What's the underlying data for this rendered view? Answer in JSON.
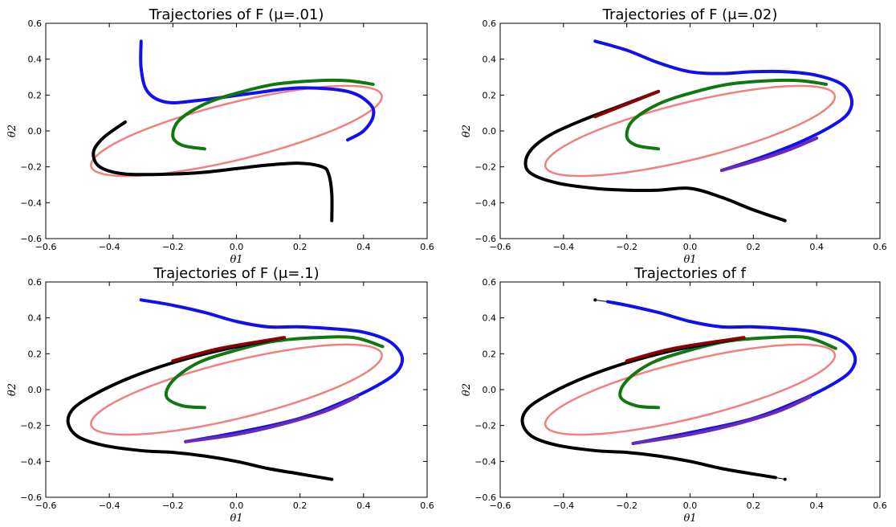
{
  "colors": {
    "limit_cycle": "#f08080",
    "blue": "#1010ee",
    "green": "#107810",
    "black": "#000000",
    "red": "#8b0000",
    "purple": "#6a2ab8"
  },
  "chart_data": [
    {
      "type": "line",
      "title": "Trajectories of F (μ=.01)",
      "xlabel": "θ1",
      "ylabel": "θ2",
      "xlim": [
        -0.6,
        0.6
      ],
      "ylim": [
        -0.6,
        0.6
      ],
      "xticks": [
        "−0.6",
        "−0.4",
        "−0.2",
        "0.0",
        "0.2",
        "0.4",
        "0.6"
      ],
      "yticks": [
        "0.6",
        "0.4",
        "0.2",
        "0.0",
        "−0.2",
        "−0.4",
        "−0.6"
      ],
      "grid": false,
      "ellipse": {
        "cx": 0.0,
        "cy": 0.0,
        "rx": 0.5,
        "ry": 0.15,
        "angle_deg": 25
      },
      "series": [
        {
          "color": "blue",
          "points": [
            [
              -0.3,
              0.5
            ],
            [
              -0.3,
              0.35
            ],
            [
              -0.28,
              0.22
            ],
            [
              -0.22,
              0.16
            ],
            [
              -0.12,
              0.17
            ],
            [
              0.05,
              0.21
            ],
            [
              0.2,
              0.24
            ],
            [
              0.35,
              0.22
            ],
            [
              0.42,
              0.15
            ],
            [
              0.43,
              0.08
            ],
            [
              0.4,
              0.0
            ],
            [
              0.35,
              -0.05
            ]
          ]
        },
        {
          "color": "green",
          "points": [
            [
              -0.1,
              -0.1
            ],
            [
              -0.17,
              -0.08
            ],
            [
              -0.2,
              -0.03
            ],
            [
              -0.18,
              0.06
            ],
            [
              -0.1,
              0.15
            ],
            [
              0.0,
              0.21
            ],
            [
              0.12,
              0.26
            ],
            [
              0.25,
              0.28
            ],
            [
              0.35,
              0.28
            ],
            [
              0.43,
              0.26
            ]
          ]
        },
        {
          "color": "black",
          "points": [
            [
              0.3,
              -0.5
            ],
            [
              0.3,
              -0.35
            ],
            [
              0.29,
              -0.24
            ],
            [
              0.27,
              -0.2
            ],
            [
              0.2,
              -0.18
            ],
            [
              0.1,
              -0.19
            ],
            [
              0.0,
              -0.21
            ],
            [
              -0.1,
              -0.23
            ],
            [
              -0.2,
              -0.24
            ],
            [
              -0.35,
              -0.24
            ],
            [
              -0.43,
              -0.2
            ],
            [
              -0.45,
              -0.12
            ],
            [
              -0.42,
              -0.04
            ],
            [
              -0.35,
              0.05
            ]
          ]
        }
      ]
    },
    {
      "type": "line",
      "title": "Trajectories of F (μ=.02)",
      "xlabel": "θ1",
      "ylabel": "θ2",
      "xlim": [
        -0.6,
        0.6
      ],
      "ylim": [
        -0.6,
        0.6
      ],
      "xticks": [
        "−0.6",
        "−0.4",
        "−0.2",
        "0.0",
        "0.2",
        "0.4",
        "0.6"
      ],
      "yticks": [
        "0.6",
        "0.4",
        "0.2",
        "0.0",
        "−0.2",
        "−0.4",
        "−0.6"
      ],
      "grid": false,
      "ellipse": {
        "cx": 0.0,
        "cy": 0.0,
        "rx": 0.5,
        "ry": 0.15,
        "angle_deg": 25
      },
      "series": [
        {
          "color": "blue",
          "points": [
            [
              -0.3,
              0.5
            ],
            [
              -0.2,
              0.45
            ],
            [
              -0.1,
              0.38
            ],
            [
              0.0,
              0.33
            ],
            [
              0.1,
              0.32
            ],
            [
              0.2,
              0.33
            ],
            [
              0.3,
              0.33
            ],
            [
              0.4,
              0.31
            ],
            [
              0.48,
              0.26
            ],
            [
              0.51,
              0.18
            ],
            [
              0.5,
              0.1
            ],
            [
              0.45,
              0.03
            ],
            [
              0.35,
              -0.06
            ],
            [
              0.22,
              -0.15
            ],
            [
              0.1,
              -0.22
            ]
          ]
        },
        {
          "color": "purple",
          "points": [
            [
              0.1,
              -0.22
            ],
            [
              0.22,
              -0.16
            ],
            [
              0.32,
              -0.1
            ],
            [
              0.4,
              -0.04
            ]
          ]
        },
        {
          "color": "green",
          "points": [
            [
              -0.1,
              -0.1
            ],
            [
              -0.17,
              -0.08
            ],
            [
              -0.2,
              -0.03
            ],
            [
              -0.18,
              0.06
            ],
            [
              -0.1,
              0.15
            ],
            [
              0.0,
              0.21
            ],
            [
              0.12,
              0.26
            ],
            [
              0.25,
              0.28
            ],
            [
              0.35,
              0.28
            ],
            [
              0.43,
              0.26
            ]
          ]
        },
        {
          "color": "black",
          "points": [
            [
              0.3,
              -0.5
            ],
            [
              0.2,
              -0.44
            ],
            [
              0.1,
              -0.37
            ],
            [
              0.0,
              -0.32
            ],
            [
              -0.1,
              -0.33
            ],
            [
              -0.2,
              -0.33
            ],
            [
              -0.3,
              -0.32
            ],
            [
              -0.42,
              -0.29
            ],
            [
              -0.5,
              -0.24
            ],
            [
              -0.52,
              -0.18
            ],
            [
              -0.5,
              -0.1
            ],
            [
              -0.44,
              -0.02
            ],
            [
              -0.34,
              0.06
            ],
            [
              -0.22,
              0.14
            ],
            [
              -0.1,
              0.22
            ]
          ]
        },
        {
          "color": "red",
          "points": [
            [
              -0.3,
              0.08
            ],
            [
              -0.2,
              0.15
            ],
            [
              -0.1,
              0.22
            ]
          ]
        }
      ]
    },
    {
      "type": "line",
      "title": "Trajectories of F (μ=.1)",
      "xlabel": "θ1",
      "ylabel": "θ2",
      "xlim": [
        -0.6,
        0.6
      ],
      "ylim": [
        -0.6,
        0.6
      ],
      "xticks": [
        "−0.6",
        "−0.4",
        "−0.2",
        "0.0",
        "0.2",
        "0.4",
        "0.6"
      ],
      "yticks": [
        "0.6",
        "0.4",
        "0.2",
        "0.0",
        "−0.2",
        "−0.4",
        "−0.6"
      ],
      "grid": false,
      "ellipse": {
        "cx": 0.0,
        "cy": 0.0,
        "rx": 0.5,
        "ry": 0.15,
        "angle_deg": 25
      },
      "series": [
        {
          "color": "blue",
          "points": [
            [
              -0.3,
              0.5
            ],
            [
              -0.2,
              0.47
            ],
            [
              -0.1,
              0.43
            ],
            [
              0.0,
              0.38
            ],
            [
              0.1,
              0.35
            ],
            [
              0.2,
              0.35
            ],
            [
              0.3,
              0.34
            ],
            [
              0.4,
              0.32
            ],
            [
              0.48,
              0.27
            ],
            [
              0.52,
              0.19
            ],
            [
              0.51,
              0.11
            ],
            [
              0.46,
              0.04
            ],
            [
              0.36,
              -0.05
            ],
            [
              0.2,
              -0.16
            ],
            [
              0.0,
              -0.24
            ],
            [
              -0.16,
              -0.29
            ]
          ]
        },
        {
          "color": "purple",
          "points": [
            [
              -0.16,
              -0.29
            ],
            [
              0.0,
              -0.25
            ],
            [
              0.15,
              -0.19
            ],
            [
              0.28,
              -0.12
            ],
            [
              0.38,
              -0.04
            ]
          ]
        },
        {
          "color": "green",
          "points": [
            [
              -0.1,
              -0.1
            ],
            [
              -0.17,
              -0.09
            ],
            [
              -0.22,
              -0.04
            ],
            [
              -0.2,
              0.05
            ],
            [
              -0.12,
              0.15
            ],
            [
              0.0,
              0.22
            ],
            [
              0.12,
              0.27
            ],
            [
              0.25,
              0.29
            ],
            [
              0.37,
              0.29
            ],
            [
              0.46,
              0.24
            ]
          ]
        },
        {
          "color": "black",
          "points": [
            [
              0.3,
              -0.5
            ],
            [
              0.2,
              -0.47
            ],
            [
              0.1,
              -0.44
            ],
            [
              0.0,
              -0.4
            ],
            [
              -0.1,
              -0.37
            ],
            [
              -0.2,
              -0.35
            ],
            [
              -0.3,
              -0.34
            ],
            [
              -0.42,
              -0.31
            ],
            [
              -0.5,
              -0.26
            ],
            [
              -0.53,
              -0.18
            ],
            [
              -0.51,
              -0.1
            ],
            [
              -0.44,
              -0.02
            ],
            [
              -0.33,
              0.07
            ],
            [
              -0.2,
              0.15
            ],
            [
              -0.05,
              0.22
            ],
            [
              0.15,
              0.29
            ]
          ]
        },
        {
          "color": "red",
          "points": [
            [
              -0.2,
              0.16
            ],
            [
              -0.05,
              0.23
            ],
            [
              0.15,
              0.29
            ]
          ]
        }
      ]
    },
    {
      "type": "line",
      "title": "Trajectories of f",
      "xlabel": "θ1",
      "ylabel": "θ2",
      "xlim": [
        -0.6,
        0.6
      ],
      "ylim": [
        -0.6,
        0.6
      ],
      "xticks": [
        "−0.6",
        "−0.4",
        "−0.2",
        "0.0",
        "0.2",
        "0.4",
        "0.6"
      ],
      "yticks": [
        "0.6",
        "0.4",
        "0.2",
        "0.0",
        "−0.2",
        "−0.4",
        "−0.6"
      ],
      "grid": false,
      "ellipse": {
        "cx": 0.0,
        "cy": 0.0,
        "rx": 0.5,
        "ry": 0.15,
        "angle_deg": 25
      },
      "series": [
        {
          "color": "blue",
          "points": [
            [
              -0.26,
              0.49
            ],
            [
              -0.2,
              0.47
            ],
            [
              -0.1,
              0.43
            ],
            [
              0.0,
              0.38
            ],
            [
              0.1,
              0.35
            ],
            [
              0.2,
              0.35
            ],
            [
              0.3,
              0.34
            ],
            [
              0.4,
              0.32
            ],
            [
              0.48,
              0.27
            ],
            [
              0.52,
              0.19
            ],
            [
              0.51,
              0.11
            ],
            [
              0.46,
              0.04
            ],
            [
              0.36,
              -0.05
            ],
            [
              0.2,
              -0.16
            ],
            [
              0.0,
              -0.24
            ],
            [
              -0.18,
              -0.3
            ]
          ]
        },
        {
          "color": "purple",
          "points": [
            [
              -0.18,
              -0.3
            ],
            [
              0.0,
              -0.25
            ],
            [
              0.15,
              -0.19
            ],
            [
              0.28,
              -0.12
            ],
            [
              0.38,
              -0.04
            ]
          ]
        },
        {
          "color": "green",
          "points": [
            [
              -0.1,
              -0.1
            ],
            [
              -0.17,
              -0.09
            ],
            [
              -0.22,
              -0.04
            ],
            [
              -0.2,
              0.05
            ],
            [
              -0.12,
              0.15
            ],
            [
              0.0,
              0.22
            ],
            [
              0.12,
              0.27
            ],
            [
              0.25,
              0.29
            ],
            [
              0.37,
              0.29
            ],
            [
              0.46,
              0.23
            ]
          ]
        },
        {
          "color": "black",
          "points": [
            [
              0.27,
              -0.49
            ],
            [
              0.2,
              -0.47
            ],
            [
              0.1,
              -0.44
            ],
            [
              0.0,
              -0.4
            ],
            [
              -0.1,
              -0.37
            ],
            [
              -0.2,
              -0.35
            ],
            [
              -0.3,
              -0.34
            ],
            [
              -0.42,
              -0.31
            ],
            [
              -0.5,
              -0.26
            ],
            [
              -0.53,
              -0.18
            ],
            [
              -0.51,
              -0.1
            ],
            [
              -0.44,
              -0.02
            ],
            [
              -0.33,
              0.07
            ],
            [
              -0.2,
              0.15
            ],
            [
              -0.05,
              0.22
            ],
            [
              0.17,
              0.29
            ]
          ]
        },
        {
          "color": "red",
          "points": [
            [
              -0.2,
              0.16
            ],
            [
              -0.05,
              0.23
            ],
            [
              0.17,
              0.29
            ]
          ]
        }
      ],
      "thin_segments": [
        {
          "points": [
            [
              -0.3,
              0.5
            ],
            [
              -0.26,
              0.49
            ]
          ],
          "end_marker": [
            -0.3,
            0.5
          ]
        },
        {
          "points": [
            [
              0.3,
              -0.5
            ],
            [
              0.27,
              -0.49
            ]
          ],
          "end_marker": [
            0.3,
            -0.5
          ]
        }
      ]
    }
  ]
}
